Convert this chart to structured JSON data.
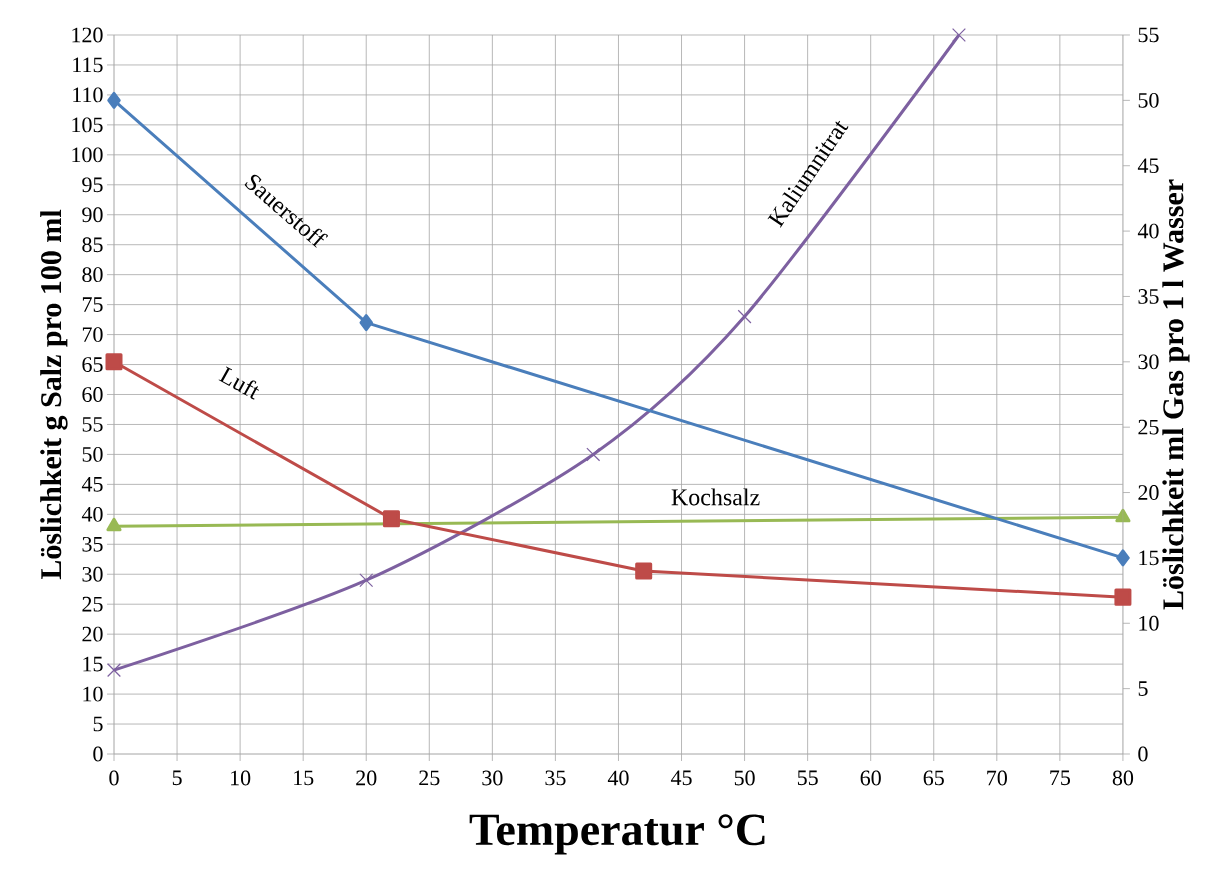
{
  "chart_data": {
    "type": "line",
    "xlabel": "Temperatur °C",
    "ylabel": "Löslichkeit g Salz pro 100 ml",
    "y2label": "Löslichkeit ml Gas pro 1 l Wasser",
    "xlim": [
      0,
      80
    ],
    "xticks": [
      0,
      5,
      10,
      15,
      20,
      25,
      30,
      35,
      40,
      45,
      50,
      55,
      60,
      65,
      70,
      75,
      80
    ],
    "ylim": [
      0,
      120
    ],
    "yticks": [
      0,
      5,
      10,
      15,
      20,
      25,
      30,
      35,
      40,
      45,
      50,
      55,
      60,
      65,
      70,
      75,
      80,
      85,
      90,
      95,
      100,
      105,
      110,
      115,
      120
    ],
    "y2lim": [
      0,
      55
    ],
    "y2ticks": [
      0,
      5,
      10,
      15,
      20,
      25,
      30,
      35,
      40,
      45,
      50,
      55
    ],
    "grid": true,
    "series": [
      {
        "name": "Sauerstoff",
        "color": "#4a7ebb",
        "axis": "y2",
        "marker": "diamond",
        "x": [
          0,
          20,
          80
        ],
        "values": [
          50,
          33,
          15
        ]
      },
      {
        "name": "Luft",
        "color": "#be4b48",
        "axis": "y2",
        "marker": "square",
        "x": [
          0,
          22,
          42,
          80
        ],
        "values": [
          30,
          18,
          14,
          12
        ]
      },
      {
        "name": "Kochsalz",
        "color": "#98b954",
        "marker": "triangle",
        "x": [
          0,
          80
        ],
        "values": [
          38,
          39.5
        ]
      },
      {
        "name": "Kaliumnitrat",
        "color": "#7d60a0",
        "marker": "cross",
        "x": [
          0,
          20,
          38,
          50,
          67
        ],
        "values": [
          14,
          29,
          50,
          73,
          120
        ]
      }
    ]
  }
}
